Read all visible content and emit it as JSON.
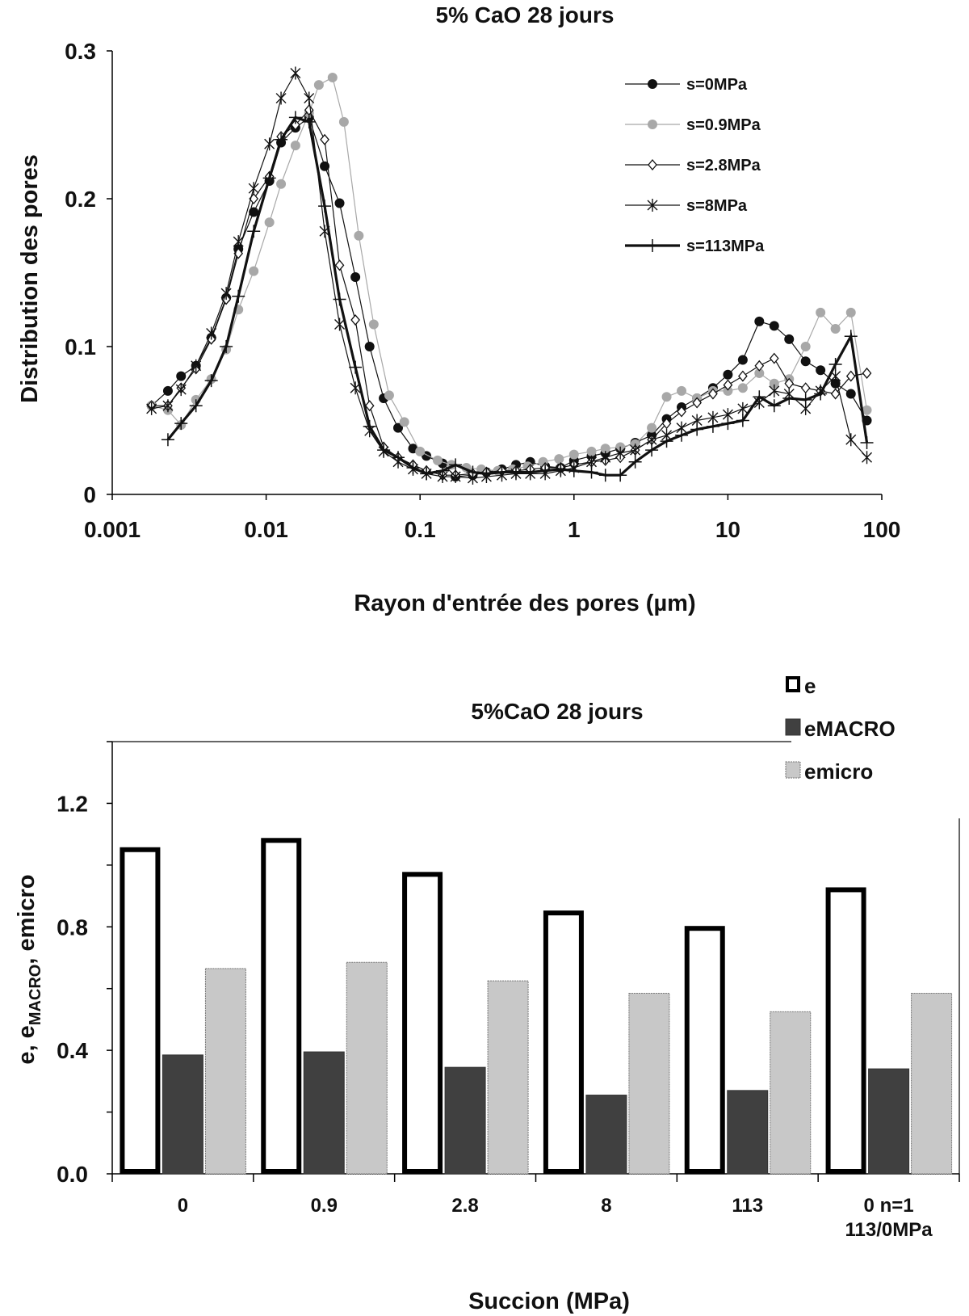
{
  "chart_data": [
    {
      "type": "line",
      "title": "5% CaO 28 jours",
      "xlabel": "Rayon d'entrée des pores (µm)",
      "ylabel": "Distribution des pores",
      "xscale": "log",
      "xlim": [
        0.001,
        100
      ],
      "ylim": [
        0,
        0.3
      ],
      "xticks": [
        "0.001",
        "0.01",
        "0.1",
        "1",
        "10",
        "100"
      ],
      "yticks": [
        "0",
        "0.1",
        "0.2",
        "0.3"
      ],
      "legend_position": "top-right",
      "series": [
        {
          "name": "s=0MPa",
          "marker": "filled-circle",
          "color": "#111111",
          "x": [
            0.0018,
            0.0023,
            0.0028,
            0.0035,
            0.0044,
            0.0055,
            0.0066,
            0.0083,
            0.0105,
            0.0125,
            0.0155,
            0.019,
            0.024,
            0.03,
            0.038,
            0.047,
            0.058,
            0.072,
            0.09,
            0.11,
            0.14,
            0.17,
            0.22,
            0.27,
            0.34,
            0.42,
            0.52,
            0.65,
            0.82,
            1.0,
            1.3,
            1.6,
            2.0,
            2.5,
            3.2,
            4.0,
            5.0,
            6.3,
            8.0,
            10.0,
            12.5,
            16.0,
            20.0,
            25.0,
            32.0,
            40.0,
            50.0,
            63.0,
            80.0
          ],
          "y": [
            0.06,
            0.07,
            0.08,
            0.087,
            0.106,
            0.133,
            0.166,
            0.191,
            0.212,
            0.238,
            0.248,
            0.255,
            0.222,
            0.197,
            0.147,
            0.1,
            0.065,
            0.045,
            0.031,
            0.026,
            0.021,
            0.012,
            0.013,
            0.015,
            0.017,
            0.02,
            0.022,
            0.019,
            0.018,
            0.023,
            0.026,
            0.028,
            0.031,
            0.035,
            0.04,
            0.051,
            0.059,
            0.065,
            0.072,
            0.081,
            0.091,
            0.117,
            0.114,
            0.105,
            0.09,
            0.084,
            0.075,
            0.068,
            0.05
          ]
        },
        {
          "name": "s=0.9MPa",
          "marker": "gray-circle",
          "color": "#a8a8a8",
          "x": [
            0.0018,
            0.0023,
            0.0028,
            0.0035,
            0.0044,
            0.0055,
            0.0066,
            0.0083,
            0.0105,
            0.0125,
            0.0155,
            0.019,
            0.022,
            0.027,
            0.032,
            0.04,
            0.05,
            0.063,
            0.079,
            0.1,
            0.13,
            0.16,
            0.2,
            0.25,
            0.32,
            0.4,
            0.5,
            0.63,
            0.8,
            1.0,
            1.3,
            1.6,
            2.0,
            2.5,
            3.2,
            4.0,
            5.0,
            6.3,
            8.0,
            10.0,
            12.5,
            16.0,
            20.0,
            25.0,
            32.0,
            40.0,
            50.0,
            63.0,
            80.0
          ],
          "y": [
            0.06,
            0.057,
            0.047,
            0.064,
            0.078,
            0.098,
            0.125,
            0.151,
            0.184,
            0.21,
            0.236,
            0.258,
            0.277,
            0.282,
            0.252,
            0.175,
            0.115,
            0.067,
            0.049,
            0.029,
            0.023,
            0.02,
            0.018,
            0.017,
            0.016,
            0.017,
            0.019,
            0.022,
            0.024,
            0.027,
            0.029,
            0.031,
            0.032,
            0.034,
            0.045,
            0.066,
            0.07,
            0.065,
            0.07,
            0.07,
            0.072,
            0.082,
            0.075,
            0.078,
            0.1,
            0.123,
            0.112,
            0.123,
            0.057
          ]
        },
        {
          "name": "s=2.8MPa",
          "marker": "open-diamond",
          "color": "#111111",
          "x": [
            0.0018,
            0.0023,
            0.0028,
            0.0035,
            0.0044,
            0.0055,
            0.0066,
            0.0083,
            0.0105,
            0.0125,
            0.0155,
            0.019,
            0.024,
            0.03,
            0.038,
            0.047,
            0.058,
            0.072,
            0.09,
            0.11,
            0.14,
            0.17,
            0.22,
            0.27,
            0.34,
            0.42,
            0.52,
            0.65,
            0.82,
            1.0,
            1.3,
            1.6,
            2.0,
            2.5,
            3.2,
            4.0,
            5.0,
            6.3,
            8.0,
            10.0,
            12.5,
            16.0,
            20.0,
            25.0,
            32.0,
            40.0,
            50.0,
            63.0,
            80.0
          ],
          "y": [
            0.06,
            0.06,
            0.072,
            0.085,
            0.105,
            0.132,
            0.163,
            0.2,
            0.215,
            0.242,
            0.25,
            0.26,
            0.24,
            0.155,
            0.118,
            0.06,
            0.032,
            0.025,
            0.02,
            0.016,
            0.013,
            0.013,
            0.014,
            0.015,
            0.016,
            0.016,
            0.017,
            0.018,
            0.018,
            0.02,
            0.022,
            0.023,
            0.025,
            0.03,
            0.037,
            0.048,
            0.056,
            0.062,
            0.068,
            0.074,
            0.08,
            0.087,
            0.092,
            0.075,
            0.072,
            0.07,
            0.068,
            0.08,
            0.082
          ]
        },
        {
          "name": "s=8MPa",
          "marker": "asterisk",
          "color": "#111111",
          "x": [
            0.0018,
            0.0023,
            0.0028,
            0.0035,
            0.0044,
            0.0055,
            0.0066,
            0.0083,
            0.0105,
            0.0125,
            0.0155,
            0.019,
            0.024,
            0.03,
            0.038,
            0.047,
            0.058,
            0.072,
            0.09,
            0.11,
            0.14,
            0.17,
            0.22,
            0.27,
            0.34,
            0.42,
            0.52,
            0.65,
            0.82,
            1.0,
            1.3,
            1.6,
            2.0,
            2.5,
            3.2,
            4.0,
            5.0,
            6.3,
            8.0,
            10.0,
            12.5,
            16.0,
            20.0,
            25.0,
            32.0,
            40.0,
            50.0,
            63.0,
            80.0
          ],
          "y": [
            0.058,
            0.06,
            0.071,
            0.087,
            0.109,
            0.136,
            0.171,
            0.207,
            0.237,
            0.268,
            0.285,
            0.268,
            0.178,
            0.115,
            0.072,
            0.043,
            0.029,
            0.022,
            0.017,
            0.014,
            0.012,
            0.012,
            0.011,
            0.012,
            0.013,
            0.014,
            0.014,
            0.014,
            0.016,
            0.018,
            0.022,
            0.025,
            0.028,
            0.03,
            0.037,
            0.04,
            0.045,
            0.05,
            0.052,
            0.054,
            0.058,
            0.062,
            0.07,
            0.068,
            0.058,
            0.07,
            0.08,
            0.037,
            0.025
          ]
        },
        {
          "name": "s=113MPa",
          "marker": "plus",
          "color": "#111111",
          "bold": true,
          "x": [
            0.0023,
            0.0028,
            0.0035,
            0.0044,
            0.0055,
            0.0066,
            0.0083,
            0.0105,
            0.0125,
            0.0155,
            0.019,
            0.024,
            0.03,
            0.038,
            0.047,
            0.058,
            0.072,
            0.09,
            0.11,
            0.14,
            0.17,
            0.22,
            0.27,
            0.34,
            0.42,
            0.52,
            0.65,
            0.82,
            1.0,
            1.3,
            1.6,
            2.0,
            2.5,
            3.2,
            4.0,
            5.0,
            6.3,
            8.0,
            10.0,
            12.5,
            16.0,
            20.0,
            25.0,
            32.0,
            40.0,
            50.0,
            63.0,
            80.0
          ],
          "y": [
            0.037,
            0.048,
            0.06,
            0.077,
            0.1,
            0.134,
            0.178,
            0.214,
            0.24,
            0.255,
            0.252,
            0.195,
            0.132,
            0.086,
            0.046,
            0.03,
            0.025,
            0.018,
            0.014,
            0.016,
            0.02,
            0.015,
            0.014,
            0.015,
            0.015,
            0.015,
            0.016,
            0.017,
            0.016,
            0.015,
            0.013,
            0.013,
            0.022,
            0.03,
            0.036,
            0.04,
            0.044,
            0.046,
            0.048,
            0.05,
            0.066,
            0.06,
            0.065,
            0.064,
            0.068,
            0.088,
            0.107,
            0.035
          ]
        }
      ]
    },
    {
      "type": "bar",
      "title": "5%CaO 28 jours",
      "xlabel": "Succion (MPa)",
      "ylabel_main": "e, e",
      "ylabel_sub": "MACRO",
      "ylabel_tail": ", emicro",
      "ylim": [
        0,
        1.4
      ],
      "yticks": [
        "0.0",
        "0.4",
        "0.8",
        "1.2"
      ],
      "legend_position": "top-right",
      "categories": [
        [
          "0"
        ],
        [
          "0.9"
        ],
        [
          "2.8"
        ],
        [
          "8"
        ],
        [
          "113"
        ],
        [
          "0 n=1",
          "113/0MPa"
        ]
      ],
      "series": [
        {
          "name": "e",
          "style": "outline",
          "color": "#000000",
          "values": [
            1.05,
            1.08,
            0.97,
            0.845,
            0.795,
            0.92
          ]
        },
        {
          "name": "eMACRO",
          "style": "dark",
          "color": "#404040",
          "values": [
            0.385,
            0.395,
            0.345,
            0.255,
            0.27,
            0.34
          ]
        },
        {
          "name": "emicro",
          "style": "light",
          "color": "#c8c8c8",
          "values": [
            0.665,
            0.685,
            0.625,
            0.585,
            0.525,
            0.585
          ]
        }
      ]
    }
  ]
}
